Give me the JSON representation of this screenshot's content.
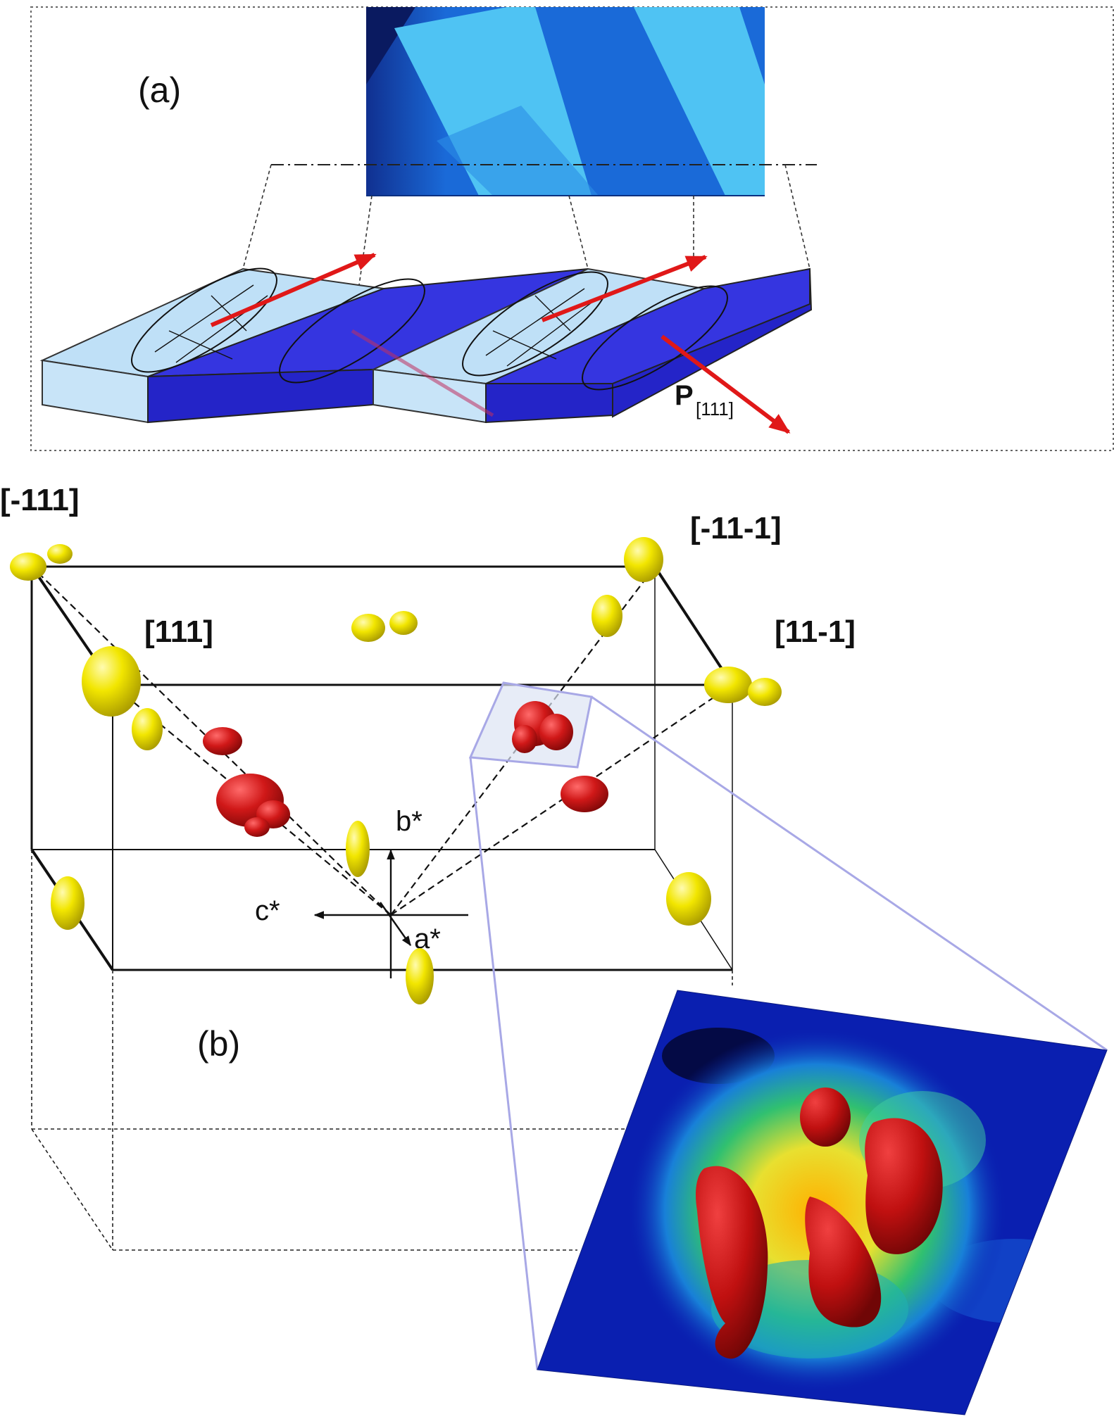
{
  "panel_a": {
    "label": "(a)",
    "polarization_symbol": "P",
    "polarization_subscript": "[111]"
  },
  "panel_b": {
    "label": "(b)",
    "corner_labels": [
      "[-111]",
      "[-11-1]",
      "[111]",
      "[11-1]"
    ],
    "axes": {
      "b": "b*",
      "c": "c*",
      "a": "a*"
    }
  },
  "colors": {
    "domain_light": "#bfe0f7",
    "domain_dark": "#3535e0",
    "domain_dark_side": "#2424c8",
    "polarization_arrow": "#e01818",
    "yellow_blob": "#f2e600",
    "red_blob": "#cc1616",
    "zoom_frame": "#a8a8e6",
    "heatmap_low": "#0a1fb0",
    "heatmap_mid": "#20c070",
    "heatmap_high": "#ffd000"
  },
  "icons": [
    "domain-slab",
    "polarization-arrow",
    "diffuse-scattering-blob",
    "intensity-heatmap"
  ]
}
